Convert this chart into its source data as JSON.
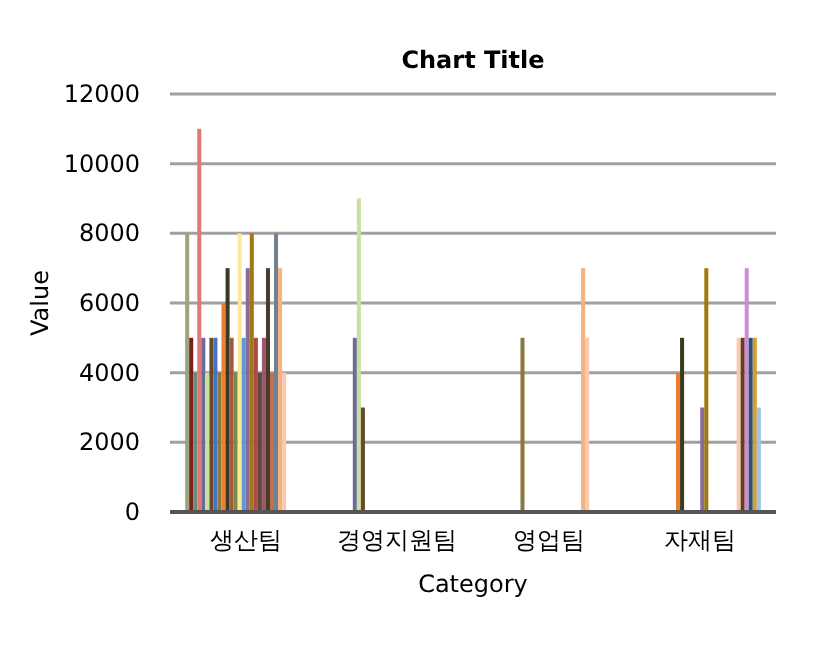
{
  "chart_data": {
    "type": "bar",
    "title": "Chart Title",
    "xlabel": "Category",
    "ylabel": "Value",
    "categories": [
      "생산팀",
      "경영지원팀",
      "영업팀",
      "자재팀"
    ],
    "ylim": [
      0,
      12000
    ],
    "yticks": [
      0,
      2000,
      4000,
      6000,
      8000,
      10000,
      12000
    ],
    "grid": "y",
    "series": [
      {
        "color": "#9aa878",
        "values": [
          8000,
          null,
          null,
          null
        ]
      },
      {
        "color": "#7a2020",
        "values": [
          5000,
          null,
          null,
          null
        ]
      },
      {
        "color": "#6a8a7a",
        "values": [
          4000,
          null,
          null,
          null
        ]
      },
      {
        "color": "#e07878",
        "values": [
          11000,
          null,
          null,
          null
        ]
      },
      {
        "color": "#6b6b9a",
        "values": [
          5000,
          5000,
          null,
          null
        ]
      },
      {
        "color": "#c8e0a0",
        "values": [
          4000,
          9000,
          null,
          null
        ]
      },
      {
        "color": "#6b4a2a",
        "values": [
          5000,
          3000,
          null,
          null
        ]
      },
      {
        "color": "#4472c4",
        "values": [
          5000,
          null,
          null,
          null
        ]
      },
      {
        "color": "#8a7a3a",
        "values": [
          4000,
          null,
          5000,
          null
        ]
      },
      {
        "color": "#ed7d31",
        "values": [
          6000,
          null,
          null,
          4000
        ]
      },
      {
        "color": "#3a3a20",
        "values": [
          7000,
          null,
          null,
          5000
        ]
      },
      {
        "color": "#a05a40",
        "values": [
          5000,
          null,
          null,
          null
        ]
      },
      {
        "color": "#7a8a4a",
        "values": [
          4000,
          null,
          null,
          null
        ]
      },
      {
        "color": "#ffe699",
        "values": [
          8000,
          null,
          null,
          null
        ]
      },
      {
        "color": "#5b9bd5",
        "values": [
          5000,
          null,
          null,
          null
        ]
      },
      {
        "color": "#8a6a9a",
        "values": [
          7000,
          null,
          null,
          3000
        ]
      },
      {
        "color": "#a07a10",
        "values": [
          8000,
          null,
          null,
          7000
        ]
      },
      {
        "color": "#b04a4a",
        "values": [
          5000,
          null,
          null,
          null
        ]
      },
      {
        "color": "#5a4a3a",
        "values": [
          4000,
          null,
          null,
          null
        ]
      },
      {
        "color": "#9a5a6a",
        "values": [
          5000,
          null,
          null,
          null
        ]
      },
      {
        "color": "#4a3a2a",
        "values": [
          7000,
          null,
          null,
          null
        ]
      },
      {
        "color": "#c07050",
        "values": [
          4000,
          null,
          null,
          null
        ]
      },
      {
        "color": "#708090",
        "values": [
          8000,
          null,
          null,
          null
        ]
      },
      {
        "color": "#f4b183",
        "values": [
          7000,
          null,
          7000,
          null
        ]
      },
      {
        "color": "#f8cbad",
        "values": [
          4000,
          null,
          5000,
          5000
        ]
      },
      {
        "color": "#6a3a2a",
        "values": [
          null,
          null,
          null,
          5000
        ]
      },
      {
        "color": "#c890d0",
        "values": [
          null,
          null,
          null,
          7000
        ]
      },
      {
        "color": "#2f4f7f",
        "values": [
          null,
          null,
          null,
          5000
        ]
      },
      {
        "color": "#d0a030",
        "values": [
          null,
          null,
          null,
          5000
        ]
      },
      {
        "color": "#9dc3e6",
        "values": [
          null,
          null,
          null,
          3000
        ]
      }
    ]
  }
}
